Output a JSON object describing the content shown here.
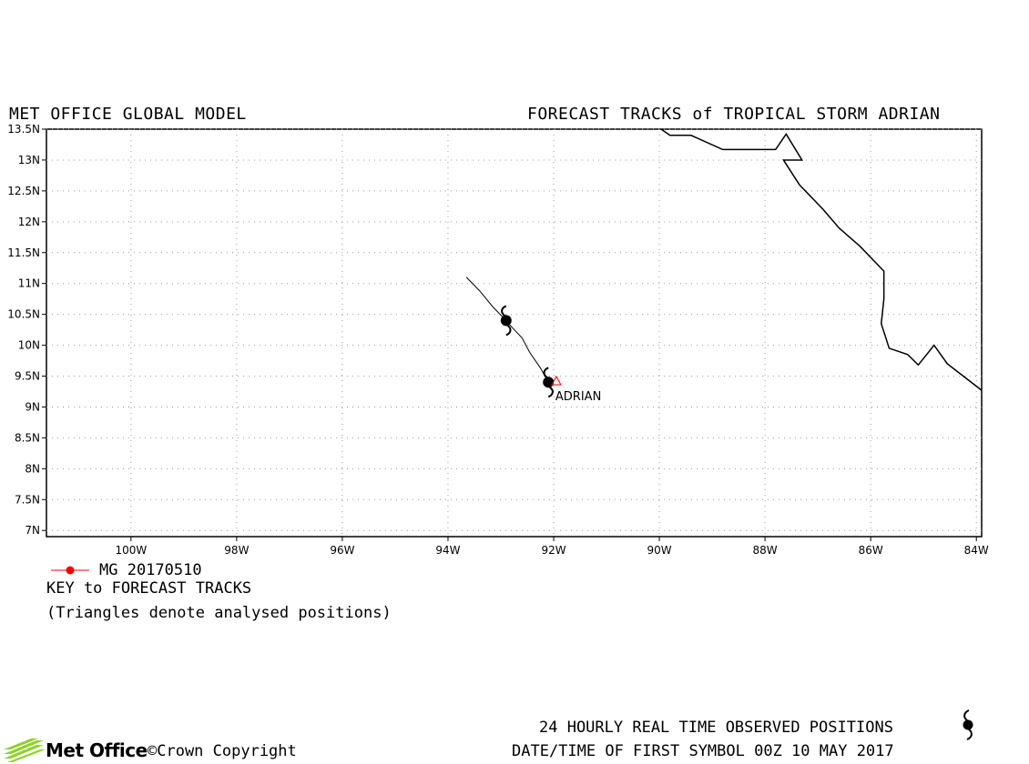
{
  "header": {
    "left_title": "MET OFFICE GLOBAL MODEL",
    "right_title": "FORECAST TRACKS of TROPICAL STORM ADRIAN"
  },
  "chart_data": {
    "type": "map-track",
    "xlim": [
      -101.6,
      -83.9
    ],
    "ylim": [
      6.9,
      13.5
    ],
    "x_ticks": [
      -100,
      -98,
      -96,
      -94,
      -92,
      -90,
      -88,
      -86,
      -84
    ],
    "x_tick_labels": [
      "100W",
      "98W",
      "96W",
      "94W",
      "92W",
      "90W",
      "88W",
      "86W",
      "84W"
    ],
    "y_ticks": [
      7,
      7.5,
      8,
      8.5,
      9,
      9.5,
      10,
      10.5,
      11,
      11.5,
      12,
      12.5,
      13,
      13.5
    ],
    "y_tick_labels": [
      "7N",
      "7.5N",
      "8N",
      "8.5N",
      "9N",
      "9.5N",
      "10N",
      "10.5N",
      "11N",
      "11.5N",
      "12N",
      "12.5N",
      "13N",
      "13.5N"
    ],
    "grid": true,
    "track": [
      {
        "lon": -92.1,
        "lat": 9.4
      },
      {
        "lon": -92.25,
        "lat": 9.63
      },
      {
        "lon": -92.45,
        "lat": 9.88
      },
      {
        "lon": -92.6,
        "lat": 10.12
      },
      {
        "lon": -92.8,
        "lat": 10.3
      },
      {
        "lon": -92.9,
        "lat": 10.4
      },
      {
        "lon": -93.15,
        "lat": 10.62
      },
      {
        "lon": -93.4,
        "lat": 10.88
      },
      {
        "lon": -93.65,
        "lat": 11.1
      }
    ],
    "storm_symbols": [
      {
        "lon": -92.1,
        "lat": 9.4
      },
      {
        "lon": -92.9,
        "lat": 10.4
      }
    ],
    "analysed_position": {
      "lon": -91.95,
      "lat": 9.42,
      "label": "ADRIAN"
    },
    "coastline": [
      {
        "lon": -90.05,
        "lat": 13.55
      },
      {
        "lon": -89.8,
        "lat": 13.4
      },
      {
        "lon": -89.4,
        "lat": 13.4
      },
      {
        "lon": -88.8,
        "lat": 13.17
      },
      {
        "lon": -87.8,
        "lat": 13.17
      },
      {
        "lon": -87.6,
        "lat": 13.42
      },
      {
        "lon": -87.3,
        "lat": 13.0
      },
      {
        "lon": -87.65,
        "lat": 13.0
      },
      {
        "lon": -87.35,
        "lat": 12.6
      },
      {
        "lon": -86.9,
        "lat": 12.2
      },
      {
        "lon": -86.6,
        "lat": 11.9
      },
      {
        "lon": -86.2,
        "lat": 11.6
      },
      {
        "lon": -85.75,
        "lat": 11.2
      },
      {
        "lon": -85.75,
        "lat": 10.75
      },
      {
        "lon": -85.8,
        "lat": 10.35
      },
      {
        "lon": -85.65,
        "lat": 9.95
      },
      {
        "lon": -85.3,
        "lat": 9.85
      },
      {
        "lon": -85.1,
        "lat": 9.68
      },
      {
        "lon": -84.8,
        "lat": 10.0
      },
      {
        "lon": -84.55,
        "lat": 9.7
      },
      {
        "lon": -83.9,
        "lat": 9.27
      }
    ],
    "colors": {
      "track": "#000000",
      "coastline": "#000000",
      "analysed_marker": "#ff0000",
      "legend_line": "#ff0000",
      "grid": "#999999",
      "logo_green": "#8ed12a"
    }
  },
  "legend": {
    "entry_label": "MG 20170510",
    "key_title": "KEY to FORECAST TRACKS",
    "note": "(Triangles denote analysed positions)"
  },
  "footer": {
    "logo_text": "Met Office",
    "copyright": "©Crown Copyright",
    "observed_note": "24 HOURLY REAL TIME OBSERVED POSITIONS",
    "first_symbol": "DATE/TIME OF FIRST SYMBOL 00Z 10 MAY 2017"
  }
}
